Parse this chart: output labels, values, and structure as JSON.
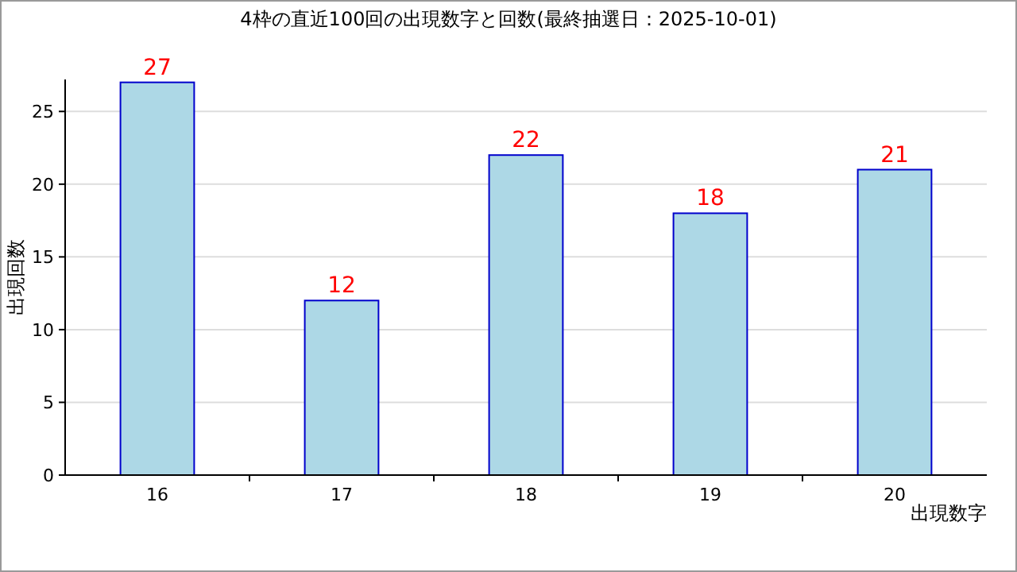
{
  "chart_data": {
    "type": "bar",
    "title": "4枠の直近100回の出現数字と回数(最終抽選日：2025-10-01)",
    "xlabel": "出現数字",
    "ylabel": "出現回数",
    "categories": [
      "16",
      "17",
      "18",
      "19",
      "20"
    ],
    "series": [
      {
        "color": "#add8e6",
        "values": [
          27,
          12,
          22,
          18,
          21
        ]
      }
    ],
    "ylim": [
      0,
      27.2
    ],
    "yticks": [
      0,
      5,
      10,
      15,
      20,
      25
    ],
    "grid": "y",
    "data_labels": true
  }
}
